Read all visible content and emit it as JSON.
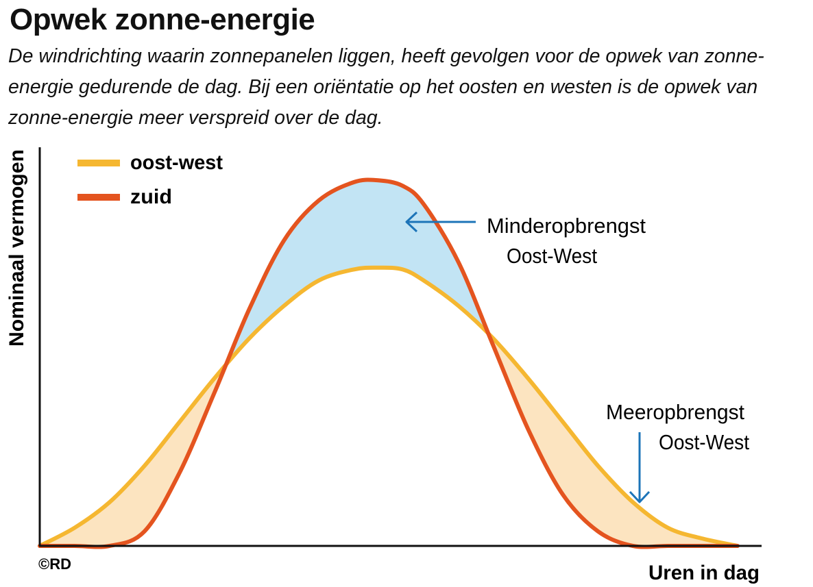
{
  "title": "Opwek zonne-energie",
  "subtitle": "De windrichting waarin zonnepanelen liggen, heeft gevolgen voor de opwek van zonne-energie gedurende de dag. Bij een oriëntatie op het oosten en westen is de opwek van zonne-energie meer verspreid over de dag.",
  "credit": "©RD",
  "colors": {
    "oost_west": "#F5B731",
    "zuid": "#E4541F",
    "minder_fill": "#C2E4F4",
    "meer_fill": "#FCE4C0",
    "arrow": "#1C74B8",
    "axis": "#111111"
  },
  "chart_data": {
    "type": "area",
    "title": "Opwek zonne-energie",
    "xlabel": "Uren in dag",
    "ylabel": "Nominaal vermogen",
    "xlim": [
      0,
      100
    ],
    "ylim": [
      0,
      100
    ],
    "grid": false,
    "legend_position": "top-left",
    "x": [
      0,
      5,
      10,
      15,
      20,
      25,
      30,
      35,
      40,
      45,
      48.5,
      52,
      55,
      60,
      65,
      70,
      75,
      80,
      85,
      90,
      95,
      100
    ],
    "series": [
      {
        "name": "oost-west",
        "values": [
          0,
          5,
          12,
          22,
          34,
          46,
          57,
          66,
          73,
          76,
          76.5,
          76,
          73,
          66,
          57,
          46,
          34,
          22,
          12,
          5,
          2,
          0
        ]
      },
      {
        "name": "zuid",
        "values": [
          0,
          0,
          0,
          4,
          20,
          42,
          65,
          84,
          95,
          100,
          100.5,
          99,
          94,
          78,
          55,
          32,
          14,
          4,
          0,
          0,
          0,
          0
        ]
      }
    ],
    "annotations": [
      {
        "text": [
          "Minderopbrengst",
          "Oost-West"
        ]
      },
      {
        "text": [
          "Meeropbrengst",
          "Oost-West"
        ]
      }
    ]
  }
}
